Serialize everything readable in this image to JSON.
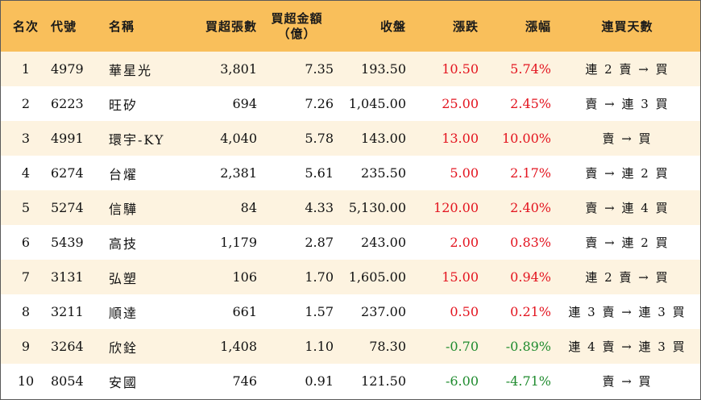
{
  "headers": {
    "rank": "名次",
    "code": "代號",
    "name": "名稱",
    "net_buy_lots": "買超張數",
    "net_buy_amount_line1": "買超金額",
    "net_buy_amount_line2": "（億）",
    "close": "收盤",
    "change": "漲跌",
    "change_pct": "漲幅",
    "streak": "連買天數"
  },
  "colors": {
    "header_bg": "#f9bf5b",
    "stripe_bg": "#fdf3e0",
    "up": "#e3141f",
    "down": "#1f8b2e"
  },
  "rows": [
    {
      "rank": "1",
      "code": "4979",
      "name": "華星光",
      "lots": "3,801",
      "amount": "7.35",
      "close": "193.50",
      "change": "10.50",
      "pct": "5.74%",
      "streak": "連 2 賣 → 買",
      "dir": "up"
    },
    {
      "rank": "2",
      "code": "6223",
      "name": "旺矽",
      "lots": "694",
      "amount": "7.26",
      "close": "1,045.00",
      "change": "25.00",
      "pct": "2.45%",
      "streak": "賣 → 連 3 買",
      "dir": "up"
    },
    {
      "rank": "3",
      "code": "4991",
      "name": "環宇-KY",
      "lots": "4,040",
      "amount": "5.78",
      "close": "143.00",
      "change": "13.00",
      "pct": "10.00%",
      "streak": "賣 → 買",
      "dir": "up"
    },
    {
      "rank": "4",
      "code": "6274",
      "name": "台燿",
      "lots": "2,381",
      "amount": "5.61",
      "close": "235.50",
      "change": "5.00",
      "pct": "2.17%",
      "streak": "賣 → 連 2 買",
      "dir": "up"
    },
    {
      "rank": "5",
      "code": "5274",
      "name": "信驊",
      "lots": "84",
      "amount": "4.33",
      "close": "5,130.00",
      "change": "120.00",
      "pct": "2.40%",
      "streak": "賣 → 連 4 買",
      "dir": "up"
    },
    {
      "rank": "6",
      "code": "5439",
      "name": "高技",
      "lots": "1,179",
      "amount": "2.87",
      "close": "243.00",
      "change": "2.00",
      "pct": "0.83%",
      "streak": "賣 → 連 2 買",
      "dir": "up"
    },
    {
      "rank": "7",
      "code": "3131",
      "name": "弘塑",
      "lots": "106",
      "amount": "1.70",
      "close": "1,605.00",
      "change": "15.00",
      "pct": "0.94%",
      "streak": "連 2 賣 → 買",
      "dir": "up"
    },
    {
      "rank": "8",
      "code": "3211",
      "name": "順達",
      "lots": "661",
      "amount": "1.57",
      "close": "237.00",
      "change": "0.50",
      "pct": "0.21%",
      "streak": "連 3 賣 → 連 3 買",
      "dir": "up"
    },
    {
      "rank": "9",
      "code": "3264",
      "name": "欣銓",
      "lots": "1,408",
      "amount": "1.10",
      "close": "78.30",
      "change": "-0.70",
      "pct": "-0.89%",
      "streak": "連 4 賣 → 連 3 買",
      "dir": "down"
    },
    {
      "rank": "10",
      "code": "8054",
      "name": "安國",
      "lots": "746",
      "amount": "0.91",
      "close": "121.50",
      "change": "-6.00",
      "pct": "-4.71%",
      "streak": "賣 → 買",
      "dir": "down"
    }
  ]
}
